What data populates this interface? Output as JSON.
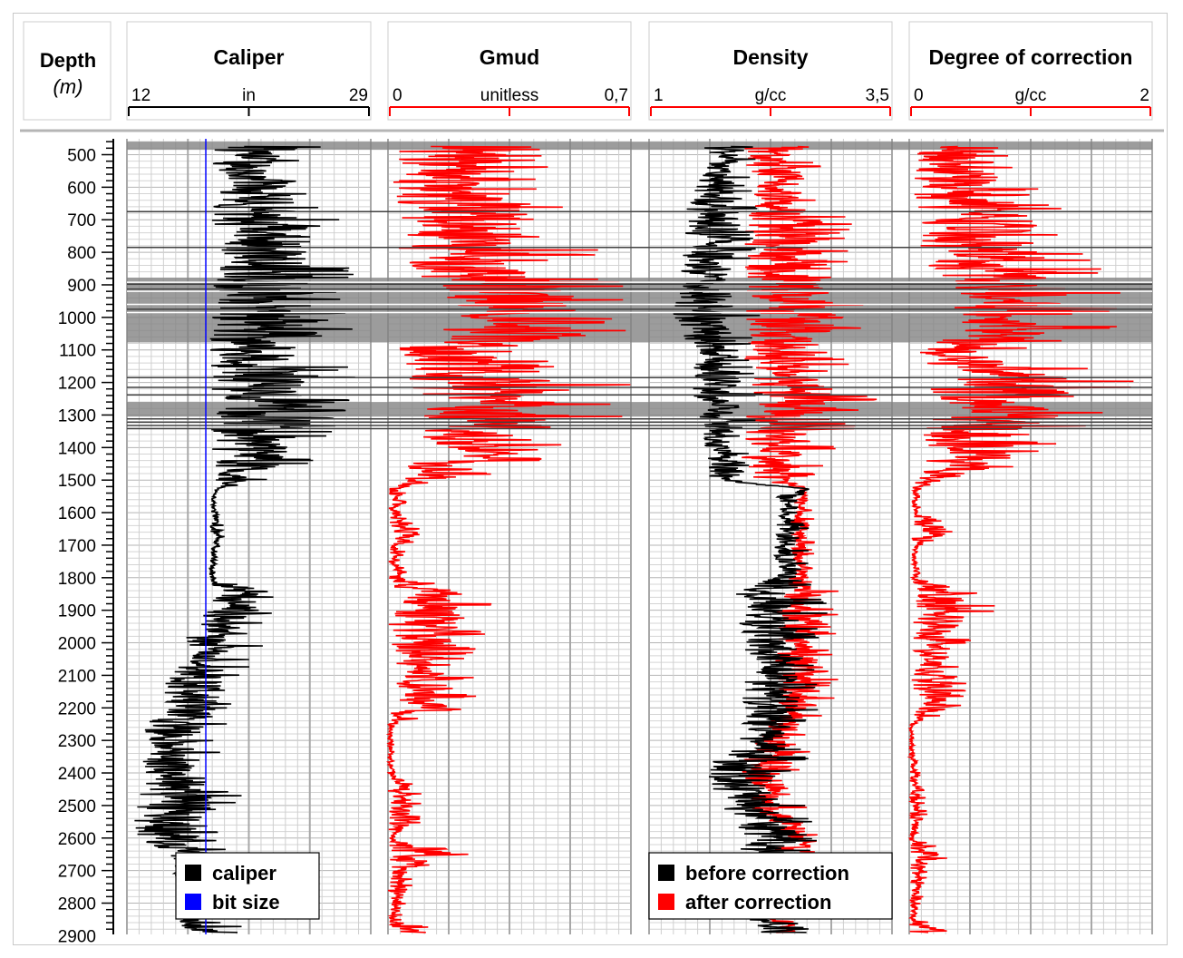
{
  "chart_data": {
    "type": "line",
    "orientation": "vertical-depth-log",
    "depth_axis": {
      "title": "Depth",
      "unit": "(m)",
      "range": [
        460,
        2900
      ],
      "ticks": [
        500,
        600,
        700,
        800,
        900,
        1000,
        1100,
        1200,
        1300,
        1400,
        1500,
        1600,
        1700,
        1800,
        1900,
        2000,
        2100,
        2200,
        2300,
        2400,
        2500,
        2600,
        2700,
        2800,
        2900
      ]
    },
    "shaded_depth_intervals": [
      [
        460,
        485
      ],
      [
        878,
        1077
      ],
      [
        1260,
        1305
      ]
    ],
    "horizontal_marker_depths": [
      675,
      785,
      898,
      913,
      975,
      1185,
      1215,
      1238,
      1312,
      1322,
      1332,
      1342
    ],
    "tracks": [
      {
        "title": "Caliper",
        "unit": "in",
        "min_label": "12",
        "max_label": "29",
        "range": [
          12,
          29
        ],
        "scale_color": "#000000",
        "reference_line": {
          "name": "bit size",
          "value": 17.5,
          "color": "#0000ff"
        },
        "series": [
          {
            "name": "caliper",
            "color": "#000000",
            "depths": [
              475,
              500,
              550,
              600,
              650,
              700,
              750,
              800,
              850,
              900,
              950,
              1000,
              1050,
              1100,
              1150,
              1200,
              1250,
              1300,
              1350,
              1400,
              1450,
              1500,
              1525,
              1550,
              1600,
              1650,
              1700,
              1750,
              1800,
              1850,
              1900,
              1950,
              2000,
              2050,
              2100,
              2150,
              2200,
              2250,
              2300,
              2350,
              2400,
              2450,
              2500,
              2550,
              2600,
              2650,
              2700,
              2750,
              2800,
              2850,
              2890
            ],
            "low": [
              17.4,
              17.5,
              17.6,
              17.6,
              17.7,
              17.6,
              17.7,
              17.7,
              17.8,
              17.6,
              17.6,
              17.6,
              17.6,
              17.6,
              17.6,
              17.5,
              17.6,
              17.6,
              17.5,
              17.6,
              17.6,
              18.0,
              18.2,
              17.9,
              17.9,
              17.8,
              17.9,
              17.8,
              17.7,
              17.6,
              17.3,
              16.4,
              16.0,
              15.8,
              14.8,
              14.2,
              14.2,
              13.2,
              12.6,
              12.6,
              13.0,
              12.8,
              12.4,
              12.4,
              12.3,
              14.8,
              15.0,
              15.6,
              16.0,
              15.4,
              16.0
            ],
            "high": [
              28.8,
              24.5,
              25.0,
              25.5,
              26.0,
              27.0,
              27.4,
              27.6,
              28.0,
              27.8,
              28.2,
              28.8,
              28.6,
              23.0,
              27.5,
              28.8,
              28.6,
              28.6,
              27.0,
              26.0,
              25.4,
              22.2,
              18.6,
              18.2,
              18.4,
              19.2,
              18.6,
              18.3,
              18.2,
              22.5,
              22.8,
              21.2,
              21.6,
              21.0,
              20.6,
              20.5,
              19.8,
              19.0,
              18.6,
              19.0,
              18.8,
              19.6,
              20.6,
              19.8,
              18.8,
              19.4,
              18.6,
              18.4,
              18.6,
              18.8,
              22.3
            ]
          }
        ]
      },
      {
        "title": "Gmud",
        "unit": "unitless",
        "min_label": "0",
        "max_label": "0,7",
        "range": [
          0,
          0.7
        ],
        "scale_color": "#ff0000",
        "series": [
          {
            "name": "Gmud",
            "color": "#ff0000",
            "depths": [
              475,
              500,
              550,
              600,
              650,
              700,
              750,
              800,
              850,
              900,
              950,
              1000,
              1050,
              1100,
              1150,
              1200,
              1250,
              1300,
              1350,
              1400,
              1450,
              1500,
              1525,
              1550,
              1600,
              1650,
              1700,
              1750,
              1800,
              1850,
              1900,
              1950,
              2000,
              2050,
              2100,
              2150,
              2200,
              2250,
              2300,
              2350,
              2400,
              2450,
              2500,
              2550,
              2600,
              2650,
              2700,
              2750,
              2800,
              2850,
              2890
            ],
            "low": [
              0.0,
              0.0,
              0.0,
              0.0,
              0.01,
              0.02,
              0.02,
              0.02,
              0.04,
              0.08,
              0.12,
              0.14,
              0.14,
              0.02,
              0.03,
              0.05,
              0.06,
              0.07,
              0.06,
              0.05,
              0.05,
              0.02,
              0.0,
              0.0,
              0.0,
              0.0,
              0.0,
              0.0,
              0.0,
              0.0,
              0.0,
              0.0,
              0.0,
              0.0,
              0.0,
              0.0,
              0.0,
              0.0,
              0.0,
              0.0,
              0.0,
              0.0,
              0.0,
              0.0,
              0.0,
              0.0,
              0.0,
              0.0,
              0.0,
              0.0,
              0.0
            ],
            "high": [
              0.6,
              0.44,
              0.5,
              0.45,
              0.55,
              0.62,
              0.6,
              0.62,
              0.66,
              0.7,
              0.7,
              0.7,
              0.7,
              0.35,
              0.55,
              0.7,
              0.7,
              0.7,
              0.55,
              0.5,
              0.45,
              0.22,
              0.06,
              0.06,
              0.05,
              0.15,
              0.06,
              0.05,
              0.06,
              0.3,
              0.32,
              0.28,
              0.28,
              0.25,
              0.25,
              0.26,
              0.24,
              0.02,
              0.02,
              0.02,
              0.03,
              0.1,
              0.1,
              0.1,
              0.02,
              0.25,
              0.08,
              0.08,
              0.06,
              0.04,
              0.18
            ]
          }
        ]
      },
      {
        "title": "Density",
        "unit": "g/cc",
        "min_label": "1",
        "max_label": "3,5",
        "range": [
          1,
          3.5
        ],
        "scale_color": "#ff0000",
        "series": [
          {
            "name": "before correction",
            "color": "#000000",
            "depths": [
              475,
              500,
              550,
              600,
              650,
              700,
              750,
              800,
              850,
              900,
              950,
              1000,
              1050,
              1100,
              1150,
              1200,
              1250,
              1300,
              1350,
              1400,
              1450,
              1500,
              1525,
              1550,
              1600,
              1650,
              1700,
              1750,
              1800,
              1850,
              1900,
              1950,
              2000,
              2050,
              2100,
              2150,
              2200,
              2250,
              2300,
              2350,
              2400,
              2450,
              2500,
              2550,
              2600,
              2650,
              2700,
              2750,
              2800,
              2850,
              2890
            ],
            "low": [
              1.5,
              1.65,
              1.55,
              1.45,
              1.4,
              1.35,
              1.3,
              1.3,
              1.3,
              1.25,
              1.22,
              1.22,
              1.2,
              1.5,
              1.45,
              1.45,
              1.45,
              1.5,
              1.55,
              1.55,
              1.6,
              1.6,
              2.5,
              2.3,
              2.3,
              2.3,
              2.25,
              2.3,
              2.25,
              1.8,
              1.8,
              1.9,
              1.95,
              2.0,
              1.95,
              1.95,
              1.9,
              1.95,
              1.9,
              1.6,
              1.6,
              1.6,
              1.7,
              1.9,
              1.95,
              1.9,
              1.9,
              1.95,
              2.0,
              2.0,
              2.05
            ],
            "high": [
              2.45,
              2.1,
              2.1,
              2.05,
              2.1,
              2.2,
              2.1,
              2.1,
              2.1,
              2.1,
              2.1,
              2.15,
              2.15,
              2.05,
              2.1,
              2.15,
              2.2,
              2.15,
              2.15,
              2.05,
              2.05,
              2.2,
              2.7,
              2.7,
              2.6,
              2.65,
              2.65,
              2.65,
              2.65,
              2.8,
              2.85,
              2.8,
              2.75,
              2.8,
              2.8,
              2.85,
              2.75,
              2.7,
              2.6,
              2.7,
              2.55,
              2.6,
              2.65,
              2.7,
              2.75,
              2.65,
              2.5,
              2.45,
              2.5,
              2.55,
              2.7
            ]
          },
          {
            "name": "after correction",
            "color": "#ff0000",
            "depths": [
              475,
              500,
              550,
              600,
              650,
              700,
              750,
              800,
              850,
              900,
              950,
              1000,
              1050,
              1100,
              1150,
              1200,
              1250,
              1300,
              1350,
              1400,
              1450,
              1500,
              1525,
              1550,
              1600,
              1650,
              1700,
              1750,
              1800,
              1850,
              1900,
              1950,
              2000,
              2050,
              2100,
              2150,
              2200,
              2250,
              2300,
              2350,
              2400,
              2450,
              2500,
              2550,
              2600,
              2650,
              2700,
              2750,
              2800,
              2850,
              2890
            ],
            "low": [
              1.95,
              1.95,
              1.95,
              1.95,
              1.95,
              1.95,
              1.95,
              1.95,
              1.95,
              1.95,
              1.95,
              1.95,
              1.95,
              1.95,
              1.95,
              1.95,
              1.95,
              1.95,
              1.95,
              1.95,
              1.95,
              2.0,
              2.55,
              2.5,
              2.45,
              2.45,
              2.45,
              2.45,
              2.45,
              2.3,
              2.3,
              2.3,
              2.3,
              2.3,
              2.3,
              2.3,
              2.3,
              2.2,
              2.1,
              2.0,
              1.95,
              2.0,
              2.0,
              2.2,
              2.3,
              2.2,
              2.1,
              2.1,
              2.2,
              2.2,
              2.3
            ],
            "high": [
              3.1,
              2.75,
              2.85,
              2.9,
              3.0,
              3.1,
              3.1,
              3.15,
              3.2,
              3.25,
              3.3,
              3.45,
              3.4,
              2.9,
              3.1,
              3.3,
              3.35,
              3.3,
              3.1,
              2.95,
              2.85,
              2.7,
              2.7,
              2.7,
              2.7,
              2.75,
              2.7,
              2.7,
              2.7,
              3.0,
              3.0,
              2.95,
              2.9,
              2.9,
              2.95,
              2.95,
              2.9,
              2.75,
              2.65,
              2.75,
              2.6,
              2.6,
              2.7,
              2.75,
              2.8,
              2.75,
              2.55,
              2.5,
              2.5,
              2.6,
              2.85
            ]
          }
        ]
      },
      {
        "title": "Degree of correction",
        "unit": "g/cc",
        "min_label": "0",
        "max_label": "2",
        "range": [
          0,
          2
        ],
        "scale_color": "#ff0000",
        "series": [
          {
            "name": "Degree of correction",
            "color": "#ff0000",
            "depths": [
              475,
              500,
              550,
              600,
              650,
              700,
              750,
              800,
              850,
              900,
              950,
              1000,
              1050,
              1100,
              1150,
              1200,
              1250,
              1300,
              1350,
              1400,
              1450,
              1500,
              1525,
              1550,
              1600,
              1650,
              1700,
              1750,
              1800,
              1850,
              1900,
              1950,
              2000,
              2050,
              2100,
              2150,
              2200,
              2250,
              2300,
              2350,
              2400,
              2450,
              2500,
              2550,
              2600,
              2650,
              2700,
              2750,
              2800,
              2850,
              2890
            ],
            "low": [
              0.0,
              0.0,
              0.0,
              0.0,
              0.02,
              0.05,
              0.05,
              0.05,
              0.1,
              0.2,
              0.3,
              0.35,
              0.35,
              0.05,
              0.08,
              0.1,
              0.15,
              0.15,
              0.12,
              0.1,
              0.1,
              0.05,
              0.02,
              0.02,
              0.02,
              0.02,
              0.02,
              0.02,
              0.02,
              0.02,
              0.02,
              0.02,
              0.02,
              0.02,
              0.02,
              0.02,
              0.02,
              0.0,
              0.0,
              0.0,
              0.0,
              0.0,
              0.0,
              0.0,
              0.0,
              0.0,
              0.0,
              0.0,
              0.0,
              0.0,
              0.0
            ],
            "high": [
              1.55,
              0.9,
              1.0,
              1.05,
              1.2,
              1.5,
              1.4,
              1.45,
              1.6,
              1.75,
              1.75,
              1.8,
              1.7,
              0.9,
              1.4,
              1.9,
              1.8,
              1.7,
              1.4,
              1.2,
              1.05,
              0.45,
              0.1,
              0.1,
              0.1,
              0.45,
              0.1,
              0.08,
              0.1,
              0.6,
              0.75,
              0.55,
              0.5,
              0.45,
              0.45,
              0.5,
              0.45,
              0.05,
              0.05,
              0.05,
              0.1,
              0.12,
              0.15,
              0.15,
              0.05,
              0.4,
              0.15,
              0.15,
              0.1,
              0.1,
              0.45
            ]
          }
        ]
      }
    ],
    "legends": [
      {
        "position": "bottom of Caliper track",
        "items": [
          {
            "label": "caliper",
            "color": "#000000"
          },
          {
            "label": "bit size",
            "color": "#0000ff"
          }
        ]
      },
      {
        "position": "bottom of Density track",
        "items": [
          {
            "label": "before correction",
            "color": "#000000"
          },
          {
            "label": "after correction",
            "color": "#ff0000"
          }
        ]
      }
    ]
  }
}
